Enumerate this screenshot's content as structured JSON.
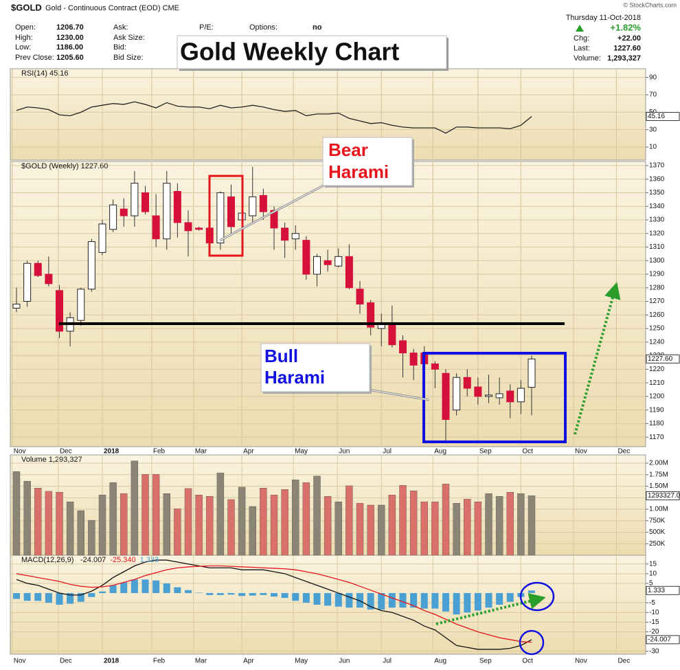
{
  "header": {
    "symbol": "$GOLD",
    "name": "Gold - Continuous Contract (EOD) CME",
    "copyright": "© StockCharts.com",
    "date": "Thursday 11-Oct-2018",
    "pct": "+1.82%",
    "left": [
      [
        "Open:",
        "1206.70"
      ],
      [
        "High:",
        "1230.00"
      ],
      [
        "Low:",
        "1186.00"
      ],
      [
        "Prev Close:",
        "1205.60"
      ]
    ],
    "mid": [
      "Ask:",
      "Ask Size:",
      "Bid:",
      "Bid Size:"
    ],
    "pe": "P/E:",
    "options": [
      "Options:",
      "no"
    ],
    "right": [
      [
        "Chg:",
        "+22.00"
      ],
      [
        "Last:",
        "1227.60"
      ],
      [
        "Volume:",
        "1,293,327"
      ]
    ]
  },
  "annotations": {
    "title": "Gold Weekly Chart",
    "bear": [
      "Bear",
      "Harami"
    ],
    "bull": [
      "Bull",
      "Harami"
    ]
  },
  "chart_data": [
    {
      "type": "line",
      "title": "RSI(14) 45.16",
      "last_label": "45.16",
      "series": [
        {
          "color": "#222",
          "values": [
            52,
            56,
            55,
            53,
            47,
            46,
            50,
            56,
            58,
            60,
            59,
            62,
            59,
            55,
            61,
            57,
            56,
            56,
            54,
            58,
            55,
            56,
            58,
            56,
            53,
            51,
            52,
            46,
            48,
            48,
            49,
            43,
            40,
            37,
            38,
            35,
            33,
            32,
            32,
            32,
            26,
            33,
            33,
            32,
            32,
            32,
            31,
            35,
            45.16
          ]
        }
      ],
      "ylim": [
        -5,
        100
      ],
      "yticks": [
        90,
        70,
        50,
        30,
        10
      ],
      "grid": true
    },
    {
      "type": "candlestick",
      "title": "$GOLD (Weekly) 1227.60",
      "last_label": "1227.60",
      "up_color": "#ffffff",
      "down_color": "#d5103a",
      "open": [
        1265,
        1270,
        1298,
        1290,
        1278,
        1248,
        1256,
        1279,
        1306,
        1323,
        1338,
        1333,
        1350,
        1333,
        1316,
        1351,
        1328,
        1324,
        1324,
        1313,
        1347,
        1330,
        1333,
        1348,
        1337,
        1324,
        1316,
        1315,
        1290,
        1300,
        1296,
        1303,
        1279,
        1269,
        1250,
        1253,
        1241,
        1232,
        1232,
        1224,
        1217,
        1190,
        1214,
        1207,
        1200,
        1199,
        1204,
        1196,
        1206.7
      ],
      "high": [
        1280,
        1300,
        1300,
        1303,
        1282,
        1262,
        1280,
        1316,
        1330,
        1345,
        1346,
        1366,
        1355,
        1349,
        1366,
        1357,
        1337,
        1325,
        1326,
        1351,
        1356,
        1348,
        1369,
        1353,
        1340,
        1328,
        1326,
        1318,
        1305,
        1308,
        1309,
        1312,
        1285,
        1271,
        1261,
        1267,
        1245,
        1235,
        1237,
        1226,
        1220,
        1217,
        1220,
        1214,
        1216,
        1214,
        1209,
        1212,
        1230
      ],
      "low": [
        1262,
        1266,
        1288,
        1281,
        1243,
        1237,
        1252,
        1277,
        1304,
        1321,
        1325,
        1325,
        1334,
        1310,
        1308,
        1317,
        1303,
        1322,
        1309,
        1308,
        1320,
        1324,
        1328,
        1330,
        1308,
        1302,
        1308,
        1286,
        1281,
        1292,
        1295,
        1279,
        1261,
        1245,
        1237,
        1236,
        1214,
        1212,
        1222,
        1206,
        1167,
        1186,
        1200,
        1194,
        1195,
        1194,
        1184,
        1187,
        1186
      ],
      "close": [
        1268,
        1298,
        1289,
        1283,
        1248,
        1258,
        1279,
        1314,
        1327,
        1341,
        1333,
        1357,
        1336,
        1316,
        1357,
        1328,
        1322,
        1323,
        1313,
        1350,
        1325,
        1335,
        1347,
        1336,
        1324,
        1315,
        1320,
        1290,
        1303,
        1297,
        1303,
        1280,
        1268,
        1251,
        1253,
        1238,
        1232,
        1223,
        1224,
        1220,
        1183,
        1214,
        1206,
        1200,
        1201,
        1202,
        1196,
        1206,
        1227.6
      ],
      "ylim": [
        1163,
        1373
      ],
      "yticks": [
        1170,
        1180,
        1190,
        1200,
        1210,
        1220,
        1230,
        1240,
        1250,
        1260,
        1270,
        1280,
        1290,
        1300,
        1310,
        1320,
        1330,
        1340,
        1350,
        1360,
        1370
      ],
      "xticks": [
        {
          "value": -0.4,
          "label": "Nov"
        },
        {
          "value": 3.9,
          "label": "Dec"
        },
        {
          "value": 8.0,
          "label": "2018"
        },
        {
          "value": 12.6,
          "label": "Feb"
        },
        {
          "value": 16.5,
          "label": "Mar"
        },
        {
          "value": 21.0,
          "label": "Apr"
        },
        {
          "value": 25.8,
          "label": "May"
        },
        {
          "value": 29.9,
          "label": "Jun"
        },
        {
          "value": 34.0,
          "label": "Jul"
        },
        {
          "value": 38.8,
          "label": "Aug"
        },
        {
          "value": 43.0,
          "label": "Sep"
        },
        {
          "value": 47.0,
          "label": "Oct"
        },
        {
          "value": 51.9,
          "label": "Nov"
        },
        {
          "value": 55.9,
          "label": "Dec"
        }
      ],
      "grid": true
    },
    {
      "type": "bar",
      "title": "Volume 1,293,327",
      "last_label": "1293327.0",
      "up_color": "#8c8474",
      "down_color": "#d9706a",
      "values": [
        1820000,
        1610000,
        1460000,
        1390000,
        1370000,
        1160000,
        970000,
        760000,
        1310000,
        1580000,
        1340000,
        2050000,
        1760000,
        1760000,
        1340000,
        1010000,
        1450000,
        1310000,
        1280000,
        1790000,
        1210000,
        1480000,
        1060000,
        1460000,
        1310000,
        1430000,
        1640000,
        1580000,
        1720000,
        1280000,
        1160000,
        1510000,
        1130000,
        1090000,
        1090000,
        1310000,
        1520000,
        1400000,
        1160000,
        1160000,
        1550000,
        1130000,
        1220000,
        1160000,
        1340000,
        1280000,
        1370000,
        1340000,
        1293327
      ],
      "ylim": [
        0,
        2180000
      ],
      "yticks": [
        {
          "value": 2000000,
          "label": "2.00M"
        },
        {
          "value": 1750000,
          "label": "1.75M"
        },
        {
          "value": 1500000,
          "label": "1.50M"
        },
        {
          "value": 1250000,
          "label": "1.25M"
        },
        {
          "value": 1000000,
          "label": "1.00M"
        },
        {
          "value": 750000,
          "label": "750K"
        },
        {
          "value": 500000,
          "label": "500K"
        },
        {
          "value": 250000,
          "label": "250K"
        }
      ],
      "grid": true
    },
    {
      "type": "combo",
      "title": "MACD(12,26,9)",
      "series": [
        {
          "type": "bar",
          "color": "#4a9fd3",
          "last_label": "1.333",
          "values": [
            -3,
            -4,
            -4,
            -5,
            -6,
            -5.5,
            -4.5,
            -2,
            0.8,
            4,
            5.5,
            7,
            7,
            6.5,
            5,
            3,
            1.5,
            0.2,
            -1,
            -1,
            -0.8,
            -1.5,
            -1.3,
            -1,
            -1.8,
            -2.5,
            -4,
            -5,
            -6,
            -6.5,
            -7,
            -7.5,
            -7.5,
            -8.5,
            -8.5,
            -7.5,
            -7.5,
            -7.5,
            -8,
            -8,
            -9.5,
            -11,
            -10,
            -9,
            -7.5,
            -6,
            -4.5,
            -2,
            1.333
          ]
        },
        {
          "type": "line",
          "color": "#111111",
          "last_label": "-24.007",
          "values": [
            7,
            5,
            4,
            2,
            0,
            -1,
            -1,
            1,
            4,
            8,
            11,
            14,
            16,
            17,
            17,
            16,
            15,
            14,
            13,
            13,
            13,
            12,
            12,
            12,
            11,
            10,
            8,
            6,
            4,
            2,
            0,
            -2,
            -4,
            -7,
            -9,
            -10,
            -12,
            -14,
            -17,
            -19,
            -23,
            -27,
            -28,
            -29,
            -29,
            -29,
            -28.5,
            -27,
            -24.007
          ]
        },
        {
          "type": "line",
          "color": "#e8141c",
          "last_label": "-25.340",
          "values": [
            10,
            9,
            8,
            7,
            6,
            4.5,
            3.5,
            3,
            3.2,
            4,
            5.5,
            7,
            9,
            10.5,
            12,
            13,
            13.5,
            13.8,
            14,
            14,
            13.8,
            13.5,
            13.3,
            13,
            12.8,
            12.5,
            12,
            11,
            10,
            8.5,
            7,
            5.5,
            3.5,
            1.5,
            -0.5,
            -2.5,
            -4.5,
            -6.5,
            -9,
            -11,
            -13.5,
            -16,
            -18,
            -20,
            -21.5,
            -23,
            -24,
            -25,
            -25.34
          ]
        }
      ],
      "ylim": [
        -31.5,
        19.5
      ],
      "yticks": [
        15,
        10,
        5,
        -5,
        -10,
        -15,
        -20,
        -30
      ],
      "xticks": [
        {
          "value": -0.4,
          "label": "Nov"
        },
        {
          "value": 3.9,
          "label": "Dec"
        },
        {
          "value": 8.0,
          "label": "2018"
        },
        {
          "value": 12.6,
          "label": "Feb"
        },
        {
          "value": 16.5,
          "label": "Mar"
        },
        {
          "value": 21.0,
          "label": "Apr"
        },
        {
          "value": 25.8,
          "label": "May"
        },
        {
          "value": 29.9,
          "label": "Jun"
        },
        {
          "value": 34.0,
          "label": "Jul"
        },
        {
          "value": 38.8,
          "label": "Aug"
        },
        {
          "value": 43.0,
          "label": "Sep"
        },
        {
          "value": 47.0,
          "label": "Oct"
        },
        {
          "value": 51.9,
          "label": "Nov"
        },
        {
          "value": 55.9,
          "label": "Dec"
        }
      ],
      "grid": true
    }
  ]
}
